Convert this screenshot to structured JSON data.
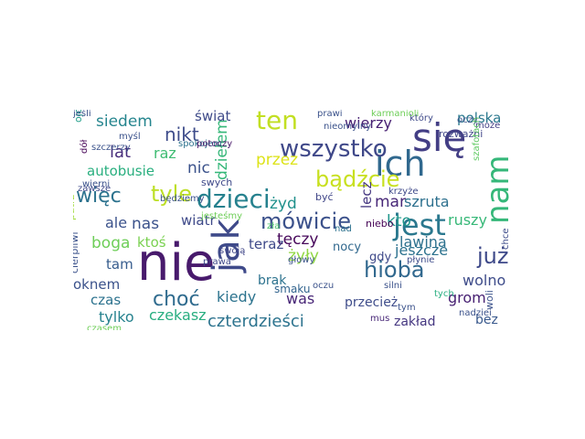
{
  "word_cloud": {
    "words": [
      {
        "text": "nie",
        "color": "#481a6c"
      },
      {
        "text": "się",
        "color": "#433e85"
      },
      {
        "text": "ich",
        "color": "#30688e"
      },
      {
        "text": "wszystko",
        "color": "#3f4889"
      },
      {
        "text": "dzieci",
        "color": "#26818e"
      },
      {
        "text": "ten",
        "color": "#c2df23"
      },
      {
        "text": "jak",
        "color": "#3f4a8a"
      },
      {
        "text": "jest",
        "color": "#2a788e"
      },
      {
        "text": "hioba",
        "color": "#31688e"
      },
      {
        "text": "tyle",
        "color": "#bddf26"
      },
      {
        "text": "bądźcie",
        "color": "#c8e020"
      },
      {
        "text": "mówicie",
        "color": "#3b518b"
      },
      {
        "text": "więc",
        "color": "#2c728e"
      },
      {
        "text": "nam",
        "color": "#35b779"
      },
      {
        "text": "choć",
        "color": "#2f6b8e"
      },
      {
        "text": "już",
        "color": "#3e4989"
      },
      {
        "text": "czterdzieści",
        "color": "#2c738e"
      },
      {
        "text": "siedem",
        "color": "#25858e"
      },
      {
        "text": "nikt",
        "color": "#3e4c8a"
      },
      {
        "text": "lat",
        "color": "#472d7b"
      },
      {
        "text": "nic",
        "color": "#3b528b"
      },
      {
        "text": "dziełem",
        "color": "#35b779"
      },
      {
        "text": "polska",
        "color": "#2a788e"
      },
      {
        "text": "wierzy",
        "color": "#482173"
      },
      {
        "text": "świat",
        "color": "#3e4a89"
      },
      {
        "text": "raz",
        "color": "#3fbc73"
      },
      {
        "text": "przez",
        "color": "#dde318"
      },
      {
        "text": "autobusie",
        "color": "#29af7f"
      },
      {
        "text": "żyd",
        "color": "#21918c"
      },
      {
        "text": "czerwonym",
        "color": "#2a788e"
      },
      {
        "text": "szruta",
        "color": "#2d708e"
      },
      {
        "text": "mar",
        "color": "#482878"
      },
      {
        "text": "lecz",
        "color": "#453781"
      },
      {
        "text": "kto",
        "color": "#1f968b"
      },
      {
        "text": "nas",
        "color": "#3b528b"
      },
      {
        "text": "ale",
        "color": "#3b528b"
      },
      {
        "text": "wiatr",
        "color": "#3e4989"
      },
      {
        "text": "boga",
        "color": "#6ece58"
      },
      {
        "text": "ktoś",
        "color": "#7ad151"
      },
      {
        "text": "tęczy",
        "color": "#46075a"
      },
      {
        "text": "teraz",
        "color": "#3e4989"
      },
      {
        "text": "ruszy",
        "color": "#37b878"
      },
      {
        "text": "lawina",
        "color": "#2d718e"
      },
      {
        "text": "jeszcze",
        "color": "#2c728e"
      },
      {
        "text": "żyły",
        "color": "#90d743"
      },
      {
        "text": "tam",
        "color": "#365c8d"
      },
      {
        "text": "oknem",
        "color": "#3b528b"
      },
      {
        "text": "czas",
        "color": "#2c728e"
      },
      {
        "text": "kiedy",
        "color": "#2c738e"
      },
      {
        "text": "was",
        "color": "#482677"
      },
      {
        "text": "wolno",
        "color": "#3e4c8a"
      },
      {
        "text": "grom",
        "color": "#482173"
      },
      {
        "text": "tylko",
        "color": "#26828e"
      },
      {
        "text": "czekasz",
        "color": "#28ae80"
      },
      {
        "text": "przecież",
        "color": "#3e4c8a"
      },
      {
        "text": "bez",
        "color": "#38588c"
      },
      {
        "text": "zakład",
        "color": "#453781"
      },
      {
        "text": "brak",
        "color": "#2c728e"
      },
      {
        "text": "smaku",
        "color": "#32648e"
      },
      {
        "text": "nocy",
        "color": "#31688e"
      },
      {
        "text": "gdy",
        "color": "#3e4989"
      },
      {
        "text": "prawi",
        "color": "#3b528b"
      },
      {
        "text": "który",
        "color": "#3e4989"
      },
      {
        "text": "oczy",
        "color": "#3b528b"
      },
      {
        "text": "może",
        "color": "#423f85"
      },
      {
        "text": "nieomylny",
        "color": "#3b528b"
      },
      {
        "text": "rozważni",
        "color": "#404688"
      },
      {
        "text": "szafotach",
        "color": "#5ec962"
      },
      {
        "text": "spokojem",
        "color": "#2c728e"
      },
      {
        "text": "potoczy",
        "color": "#48186a"
      },
      {
        "text": "ojców",
        "color": "#1f9e89"
      },
      {
        "text": "szczerzy",
        "color": "#3b528b"
      },
      {
        "text": "dół",
        "color": "#440154"
      },
      {
        "text": "myśl",
        "color": "#3b528b"
      },
      {
        "text": "wierni",
        "color": "#3b528b"
      },
      {
        "text": "będziemy",
        "color": "#3b528b"
      },
      {
        "text": "swych",
        "color": "#3e4989"
      },
      {
        "text": "być",
        "color": "#404688"
      },
      {
        "text": "krzyże",
        "color": "#3e4989"
      },
      {
        "text": "niebo",
        "color": "#440154"
      },
      {
        "text": "chce",
        "color": "#3e4c8a"
      },
      {
        "text": "nad",
        "color": "#2c728e"
      },
      {
        "text": "zła",
        "color": "#4ac16d"
      },
      {
        "text": "swoją",
        "color": "#404688"
      },
      {
        "text": "prawa",
        "color": "#3e4989"
      },
      {
        "text": "głowy",
        "color": "#3b528b"
      },
      {
        "text": "jesteśmy",
        "color": "#6ece58"
      },
      {
        "text": "oczu",
        "color": "#3b528b"
      },
      {
        "text": "płynie",
        "color": "#3e4c8a"
      },
      {
        "text": "silni",
        "color": "#3b528b"
      },
      {
        "text": "tym",
        "color": "#3b528b"
      },
      {
        "text": "mus",
        "color": "#482878"
      },
      {
        "text": "tych",
        "color": "#28ae80"
      },
      {
        "text": "nadziei",
        "color": "#3b528b"
      },
      {
        "text": "woli",
        "color": "#3b528b"
      },
      {
        "text": "patrz",
        "color": "#a0da39"
      },
      {
        "text": "cierpliwi",
        "color": "#3b528b"
      },
      {
        "text": "czasem",
        "color": "#6ece58"
      },
      {
        "text": "karmanioli",
        "color": "#6ece58"
      },
      {
        "text": "zawsze",
        "color": "#3e4989"
      },
      {
        "text": "jeśli",
        "color": "#3b528b"
      }
    ]
  }
}
